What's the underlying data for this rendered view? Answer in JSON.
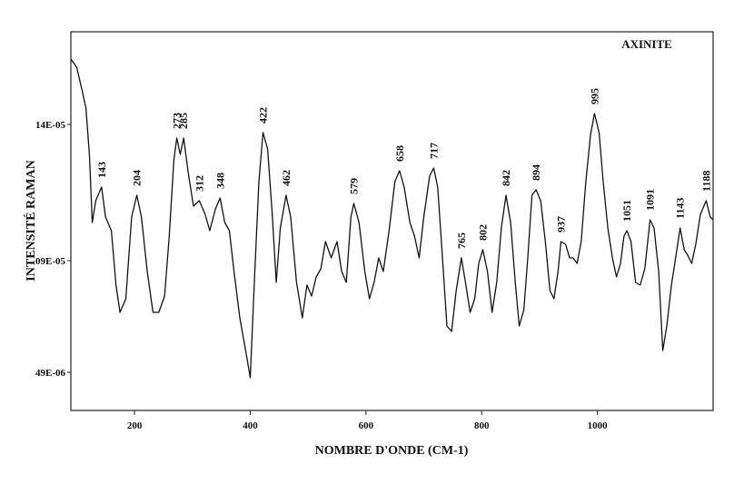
{
  "chart_data": {
    "type": "line",
    "title": "AXINITE",
    "x_label": "NOMBRE D'ONDE (CM-1)",
    "y_label": "INTENSITÉ RAMAN",
    "color": "#111111",
    "xlim": [
      90,
      1200
    ],
    "xticks": [
      200,
      400,
      600,
      800,
      1000
    ],
    "ylim": [
      3.5e-05,
      0.000174
    ],
    "yticks": [
      {
        "value": 0.00014,
        "label": "14E-05"
      },
      {
        "value": 9e-05,
        "label": "09E-05"
      },
      {
        "value": 4.9e-05,
        "label": "49E-06"
      }
    ],
    "peak_labels": [
      143,
      204,
      273,
      285,
      312,
      348,
      422,
      462,
      579,
      658,
      717,
      765,
      802,
      842,
      894,
      937,
      995,
      1051,
      1091,
      1143,
      1188
    ],
    "x": [
      90,
      100,
      110,
      116,
      122,
      127,
      133,
      143,
      150,
      160,
      168,
      175,
      185,
      195,
      204,
      212,
      222,
      232,
      242,
      252,
      260,
      268,
      273,
      279,
      285,
      293,
      302,
      312,
      322,
      330,
      340,
      348,
      356,
      364,
      372,
      382,
      392,
      400,
      408,
      415,
      422,
      430,
      438,
      445,
      452,
      462,
      470,
      480,
      490,
      498,
      506,
      514,
      522,
      530,
      540,
      550,
      558,
      566,
      574,
      579,
      588,
      598,
      606,
      614,
      622,
      630,
      640,
      650,
      658,
      666,
      676,
      684,
      692,
      700,
      710,
      717,
      724,
      732,
      740,
      748,
      756,
      765,
      772,
      780,
      788,
      795,
      802,
      810,
      818,
      826,
      834,
      842,
      850,
      858,
      865,
      873,
      880,
      887,
      894,
      902,
      910,
      918,
      925,
      932,
      937,
      945,
      952,
      958,
      965,
      972,
      980,
      988,
      995,
      1003,
      1010,
      1018,
      1026,
      1033,
      1040,
      1046,
      1051,
      1058,
      1066,
      1074,
      1082,
      1091,
      1098,
      1106,
      1113,
      1120,
      1128,
      1136,
      1143,
      1150,
      1156,
      1163,
      1170,
      1178,
      1188,
      1195,
      1200
    ],
    "values": [
      0.000164,
      0.000161,
      0.000152,
      0.000146,
      0.000129,
      0.000104,
      0.000112,
      0.000117,
      0.000106,
      0.000101,
      8.1e-05,
      7.1e-05,
      7.6e-05,
      0.000106,
      0.000114,
      0.000106,
      8.6e-05,
      7.1e-05,
      7.1e-05,
      7.7e-05,
      9.9e-05,
      0.000127,
      0.000135,
      0.000129,
      0.000135,
      0.000122,
      0.00011,
      0.000112,
      0.000107,
      0.000101,
      0.000109,
      0.000113,
      0.000104,
      0.000101,
      8.6e-05,
      6.9e-05,
      5.7e-05,
      4.7e-05,
      8.6e-05,
      0.000119,
      0.000137,
      0.000131,
      0.000107,
      8.2e-05,
      0.000102,
      0.000114,
      0.000106,
      8.2e-05,
      6.9e-05,
      8.1e-05,
      7.7e-05,
      8.4e-05,
      8.7e-05,
      9.7e-05,
      9.1e-05,
      9.7e-05,
      8.6e-05,
      8.2e-05,
      0.000106,
      0.000111,
      0.000104,
      8.6e-05,
      7.6e-05,
      8.2e-05,
      9.1e-05,
      8.6e-05,
      0.000101,
      0.000119,
      0.000123,
      0.000117,
      0.000104,
      9.9e-05,
      9.1e-05,
      0.000106,
      0.000121,
      0.000124,
      0.000117,
      9.2e-05,
      6.6e-05,
      6.4e-05,
      7.9e-05,
      9.1e-05,
      8.2e-05,
      7.1e-05,
      7.6e-05,
      8.9e-05,
      9.4e-05,
      8.6e-05,
      7.1e-05,
      8.2e-05,
      0.000102,
      0.000114,
      0.000104,
      8.2e-05,
      6.6e-05,
      7.2e-05,
      9.2e-05,
      0.000114,
      0.000116,
      0.000112,
      9.7e-05,
      7.9e-05,
      7.6e-05,
      8.6e-05,
      9.7e-05,
      9.6e-05,
      9.1e-05,
      9.1e-05,
      8.9e-05,
      9.7e-05,
      0.000119,
      0.000136,
      0.000144,
      0.000137,
      0.000119,
      0.000102,
      9.1e-05,
      8.4e-05,
      8.9e-05,
      9.9e-05,
      0.000101,
      9.7e-05,
      8.2e-05,
      8.1e-05,
      8.7e-05,
      0.000105,
      0.000102,
      8.6e-05,
      5.7e-05,
      6.6e-05,
      8.1e-05,
      9.2e-05,
      0.000102,
      9.4e-05,
      9.2e-05,
      8.9e-05,
      9.6e-05,
      0.000107,
      0.000112,
      0.000106,
      0.000105
    ]
  }
}
